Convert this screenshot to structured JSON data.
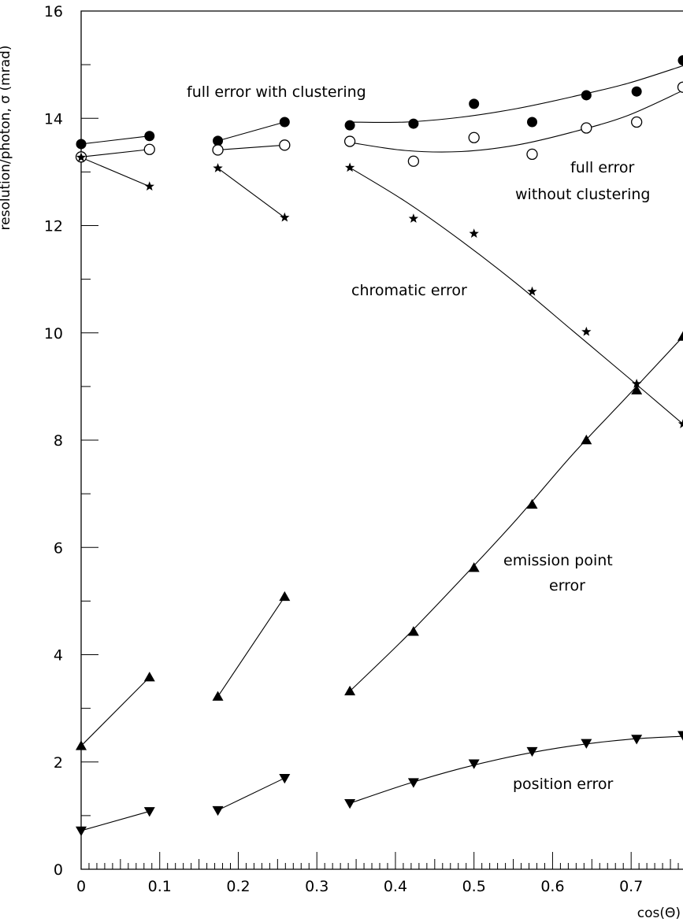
{
  "chart_data": {
    "type": "scatter",
    "xlabel": "cos(Θ)",
    "ylabel": "resolution/photon, σ (mrad)",
    "xlim": [
      0,
      0.766
    ],
    "ylim": [
      0,
      16
    ],
    "x_ticks": [
      "0",
      "0.1",
      "0.2",
      "0.3",
      "0.4",
      "0.5",
      "0.6",
      "0.7"
    ],
    "y_ticks": [
      "0",
      "2",
      "4",
      "6",
      "8",
      "10",
      "12",
      "14",
      "16"
    ],
    "grid": false,
    "annotations": [
      {
        "text": "full error with clustering",
        "series": "full_clustering"
      },
      {
        "text": "full error",
        "series": "full_noclustering"
      },
      {
        "text": "without clustering",
        "series": "full_noclustering"
      },
      {
        "text": "chromatic error",
        "series": "chromatic"
      },
      {
        "text": "emission point",
        "series": "emission"
      },
      {
        "text": "error",
        "series": "emission"
      },
      {
        "text": "position error",
        "series": "position"
      }
    ],
    "series": [
      {
        "key": "full_clustering",
        "marker": "filled-circle",
        "x": [
          0,
          0.087,
          0.174,
          0.259,
          0.342,
          0.423,
          0.5,
          0.574,
          0.643,
          0.707,
          0.766
        ],
        "y": [
          13.52,
          13.67,
          13.58,
          13.93,
          13.87,
          13.9,
          14.27,
          13.93,
          14.43,
          14.5,
          15.08
        ],
        "segments": [
          [
            0,
            1
          ],
          [
            2,
            3
          ]
        ],
        "fit": {
          "range": [
            0.342,
            0.766
          ],
          "y": [
            13.93,
            13.93,
            14.02,
            14.18,
            14.4,
            14.65,
            14.98
          ]
        }
      },
      {
        "key": "full_noclustering",
        "marker": "open-circle",
        "x": [
          0,
          0.087,
          0.174,
          0.259,
          0.342,
          0.423,
          0.5,
          0.574,
          0.643,
          0.707,
          0.766
        ],
        "y": [
          13.28,
          13.42,
          13.41,
          13.5,
          13.57,
          13.2,
          13.64,
          13.33,
          13.82,
          13.93,
          14.58
        ],
        "segments": [
          [
            0,
            1
          ],
          [
            2,
            3
          ]
        ],
        "fit": {
          "range": [
            0.342,
            0.766
          ],
          "y": [
            13.55,
            13.4,
            13.38,
            13.5,
            13.74,
            14.05,
            14.52
          ]
        }
      },
      {
        "key": "chromatic",
        "marker": "star",
        "x": [
          0,
          0.087,
          0.174,
          0.259,
          0.342,
          0.423,
          0.5,
          0.574,
          0.643,
          0.707,
          0.766
        ],
        "y": [
          13.27,
          12.73,
          13.07,
          12.15,
          13.08,
          12.13,
          11.85,
          10.77,
          10.02,
          9.05,
          8.3
        ],
        "segments": [
          [
            0,
            1
          ],
          [
            2,
            3
          ]
        ],
        "fit": {
          "range": [
            0.342,
            0.766
          ],
          "y": [
            13.08,
            12.45,
            11.72,
            10.92,
            10.05,
            9.18,
            8.3
          ]
        }
      },
      {
        "key": "emission",
        "marker": "triangle-up",
        "x": [
          0,
          0.087,
          0.174,
          0.259,
          0.342,
          0.423,
          0.5,
          0.574,
          0.643,
          0.707,
          0.766
        ],
        "y": [
          2.3,
          3.58,
          3.22,
          5.08,
          3.32,
          4.43,
          5.62,
          6.8,
          8.0,
          8.93,
          9.93
        ],
        "segments": [
          [
            0,
            1
          ],
          [
            2,
            3
          ]
        ],
        "fit": {
          "range": [
            0.342,
            0.766
          ],
          "y": [
            3.32,
            4.32,
            5.4,
            6.52,
            7.72,
            8.82,
            9.93
          ]
        }
      },
      {
        "key": "position",
        "marker": "triangle-down",
        "x": [
          0,
          0.087,
          0.174,
          0.259,
          0.342,
          0.423,
          0.5,
          0.574,
          0.643,
          0.707,
          0.766
        ],
        "y": [
          0.72,
          1.08,
          1.1,
          1.7,
          1.23,
          1.62,
          1.97,
          2.2,
          2.35,
          2.43,
          2.5
        ],
        "segments": [
          [
            0,
            1
          ],
          [
            2,
            3
          ]
        ],
        "fit": {
          "range": [
            0.342,
            0.766
          ],
          "y": [
            1.23,
            1.58,
            1.88,
            2.12,
            2.3,
            2.42,
            2.48
          ]
        }
      }
    ]
  }
}
